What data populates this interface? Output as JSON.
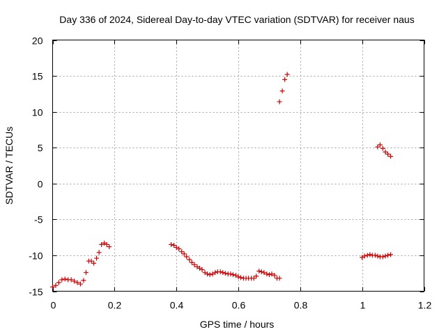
{
  "chart_data": {
    "type": "scatter",
    "title": "Day 336 of 2024, Sidereal Day-to-day VTEC variation (SDTVAR) for receiver naus",
    "xlabel": "GPS time / hours",
    "ylabel": "SDTVAR / TECUs",
    "xlim": [
      0,
      1.2
    ],
    "ylim": [
      -15,
      20
    ],
    "xticks": [
      0,
      0.2,
      0.4,
      0.6,
      0.8,
      1,
      1.2
    ],
    "xtick_labels": [
      "0",
      "0.2",
      "0.4",
      "0.6",
      "0.8",
      "1",
      "1.2"
    ],
    "yticks": [
      -15,
      -10,
      -5,
      0,
      5,
      10,
      15,
      20
    ],
    "ytick_labels": [
      "-15",
      "-10",
      "-5",
      "0",
      "5",
      "10",
      "15",
      "20"
    ],
    "grid": true,
    "marker": "+",
    "marker_color": "#cc0000",
    "series": [
      {
        "name": "SDTVAR",
        "x": [
          0.0,
          0.01,
          0.02,
          0.03,
          0.04,
          0.05,
          0.06,
          0.07,
          0.08,
          0.09,
          0.1,
          0.108,
          0.117,
          0.125,
          0.133,
          0.142,
          0.15,
          0.158,
          0.167,
          0.175,
          0.183,
          0.383,
          0.392,
          0.4,
          0.408,
          0.417,
          0.425,
          0.433,
          0.442,
          0.45,
          0.458,
          0.467,
          0.475,
          0.483,
          0.492,
          0.5,
          0.508,
          0.517,
          0.525,
          0.533,
          0.542,
          0.55,
          0.558,
          0.567,
          0.575,
          0.583,
          0.592,
          0.6,
          0.608,
          0.617,
          0.625,
          0.633,
          0.642,
          0.65,
          0.658,
          0.667,
          0.675,
          0.683,
          0.692,
          0.7,
          0.708,
          0.717,
          0.725,
          0.733,
          0.733,
          0.742,
          0.75,
          0.758,
          1.0,
          1.008,
          1.017,
          1.025,
          1.033,
          1.042,
          1.05,
          1.058,
          1.067,
          1.075,
          1.083,
          1.092,
          1.05,
          1.058,
          1.067,
          1.075,
          1.083,
          1.092
        ],
        "y": [
          -14.4,
          -14.2,
          -13.8,
          -13.4,
          -13.3,
          -13.4,
          -13.4,
          -13.6,
          -13.8,
          -14.0,
          -13.5,
          -12.4,
          -10.8,
          -10.8,
          -11.1,
          -10.4,
          -9.6,
          -8.5,
          -8.3,
          -8.5,
          -8.8,
          -8.5,
          -8.6,
          -8.9,
          -9.1,
          -9.5,
          -9.8,
          -10.2,
          -10.6,
          -11.0,
          -11.3,
          -11.6,
          -11.8,
          -12.0,
          -12.4,
          -12.6,
          -12.7,
          -12.6,
          -12.4,
          -12.3,
          -12.3,
          -12.4,
          -12.5,
          -12.6,
          -12.6,
          -12.7,
          -12.8,
          -13.0,
          -13.1,
          -13.2,
          -13.2,
          -13.2,
          -13.2,
          -13.2,
          -12.9,
          -12.2,
          -12.3,
          -12.4,
          -12.6,
          -12.7,
          -12.6,
          -12.8,
          -13.2,
          -13.2,
          11.4,
          12.9,
          14.5,
          15.2,
          -10.3,
          -10.1,
          -10.0,
          -9.9,
          -10.0,
          -10.0,
          -10.1,
          -10.2,
          -10.2,
          -10.1,
          -10.0,
          -9.9,
          5.1,
          5.4,
          4.9,
          4.4,
          4.1,
          3.8
        ]
      }
    ]
  }
}
